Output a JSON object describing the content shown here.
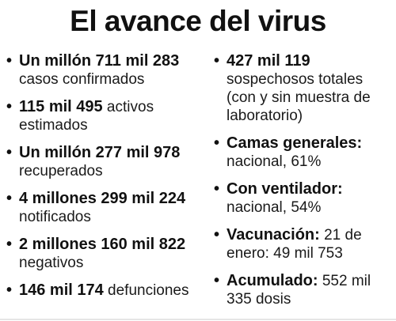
{
  "title": "El avance del virus",
  "left_items": [
    {
      "bold": "Un millón 711 mil 283",
      "normal": "casos confirmados"
    },
    {
      "bold": "115 mil 495",
      "normal": " activos estimados"
    },
    {
      "bold": "Un millón 277 mil 978",
      "normal": "recuperados"
    },
    {
      "bold": "4 millones 299 mil 224",
      "normal": "notificados"
    },
    {
      "bold": "2 millones 160 mil 822",
      "normal": "negativos"
    },
    {
      "bold": "146 mil 174",
      "normal": " defunciones"
    }
  ],
  "right_items": [
    {
      "bold": "427 mil 119",
      "normal": "sospechosos totales (con y sin muestra de laboratorio)"
    },
    {
      "bold": "Camas generales:",
      "normal": "nacional, 61%"
    },
    {
      "bold": "Con ventilador:",
      "normal": "nacional, 54%"
    },
    {
      "bold": "Vacunación:",
      "normal": " 21 de enero: 49 mil 753"
    },
    {
      "bold": "Acumulado:",
      "normal": " 552 mil 335 dosis"
    }
  ]
}
